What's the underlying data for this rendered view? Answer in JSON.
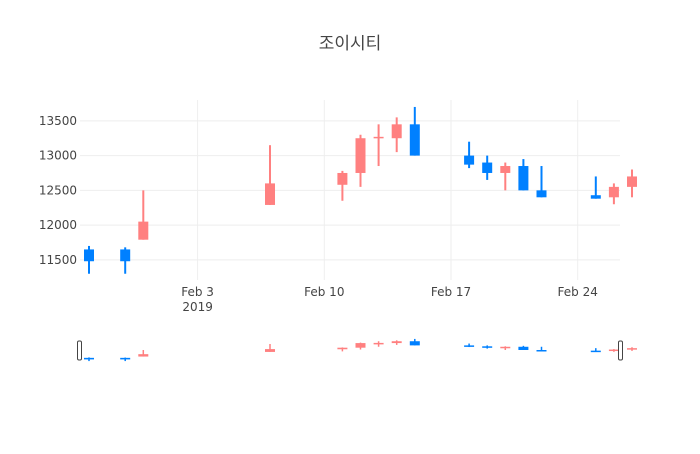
{
  "chart_data": {
    "type": "candlestick",
    "title": "조이시티",
    "colors": {
      "increasing": "#FF8080",
      "decreasing": "#0080FF"
    },
    "y_ticks": [
      11500,
      12000,
      12500,
      13000,
      13500
    ],
    "y_range": [
      11210,
      13800
    ],
    "x_range_days": [
      "2019-01-28",
      "2019-02-27"
    ],
    "x_ticks": [
      {
        "date": "2019-02-03",
        "label": "Feb 3",
        "sublabel": "2019"
      },
      {
        "date": "2019-02-10",
        "label": "Feb 10",
        "sublabel": ""
      },
      {
        "date": "2019-02-17",
        "label": "Feb 17",
        "sublabel": ""
      },
      {
        "date": "2019-02-24",
        "label": "Feb 24",
        "sublabel": ""
      }
    ],
    "candles": [
      {
        "date": "2019-01-28",
        "open": 11650,
        "high": 11700,
        "low": 11300,
        "close": 11480
      },
      {
        "date": "2019-01-30",
        "open": 11650,
        "high": 11680,
        "low": 11300,
        "close": 11480
      },
      {
        "date": "2019-01-31",
        "open": 11790,
        "high": 12500,
        "low": 11790,
        "close": 12050
      },
      {
        "date": "2019-02-07",
        "open": 12290,
        "high": 13150,
        "low": 12290,
        "close": 12600
      },
      {
        "date": "2019-02-11",
        "open": 12580,
        "high": 12780,
        "low": 12350,
        "close": 12750
      },
      {
        "date": "2019-02-12",
        "open": 12750,
        "high": 13300,
        "low": 12550,
        "close": 13250
      },
      {
        "date": "2019-02-13",
        "open": 13250,
        "high": 13450,
        "low": 12850,
        "close": 13270
      },
      {
        "date": "2019-02-14",
        "open": 13250,
        "high": 13550,
        "low": 13050,
        "close": 13450
      },
      {
        "date": "2019-02-15",
        "open": 13450,
        "high": 13700,
        "low": 13000,
        "close": 13000
      },
      {
        "date": "2019-02-18",
        "open": 13000,
        "high": 13200,
        "low": 12820,
        "close": 12870
      },
      {
        "date": "2019-02-19",
        "open": 12900,
        "high": 13000,
        "low": 12650,
        "close": 12750
      },
      {
        "date": "2019-02-20",
        "open": 12750,
        "high": 12900,
        "low": 12500,
        "close": 12850
      },
      {
        "date": "2019-02-21",
        "open": 12850,
        "high": 12950,
        "low": 12500,
        "close": 12500
      },
      {
        "date": "2019-02-22",
        "open": 12500,
        "high": 12850,
        "low": 12400,
        "close": 12400
      },
      {
        "date": "2019-02-25",
        "open": 12430,
        "high": 12700,
        "low": 12380,
        "close": 12380
      },
      {
        "date": "2019-02-26",
        "open": 12400,
        "high": 12600,
        "low": 12300,
        "close": 12550
      },
      {
        "date": "2019-02-27",
        "open": 12550,
        "high": 12800,
        "low": 12400,
        "close": 12700
      }
    ]
  }
}
